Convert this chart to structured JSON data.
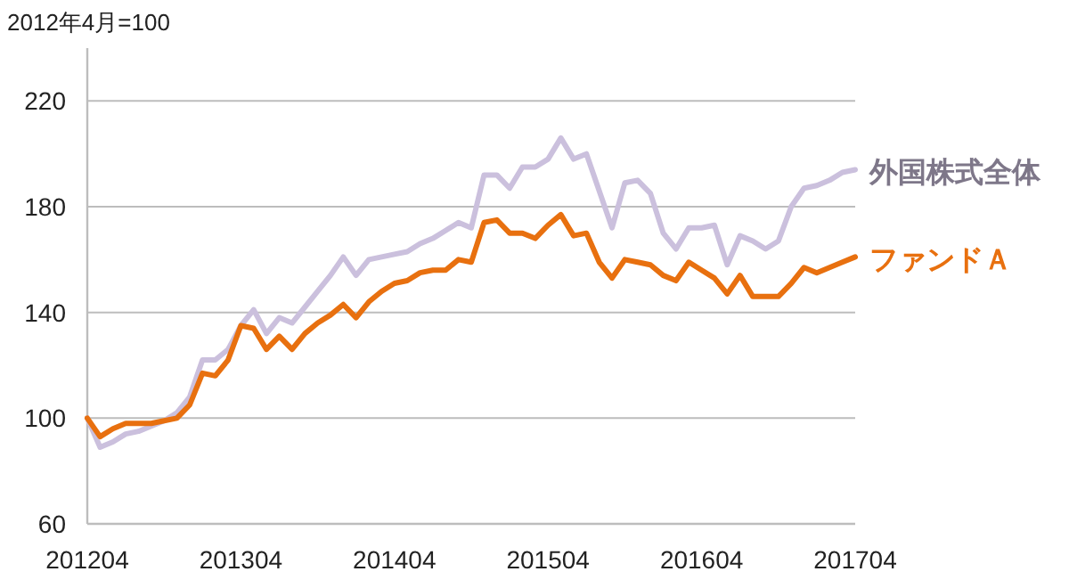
{
  "chart_data": {
    "type": "line",
    "title": "2012年4月=100",
    "x": [
      "2012-04",
      "2012-05",
      "2012-06",
      "2012-07",
      "2012-08",
      "2012-09",
      "2012-10",
      "2012-11",
      "2012-12",
      "2013-01",
      "2013-02",
      "2013-03",
      "2013-04",
      "2013-05",
      "2013-06",
      "2013-07",
      "2013-08",
      "2013-09",
      "2013-10",
      "2013-11",
      "2013-12",
      "2014-01",
      "2014-02",
      "2014-03",
      "2014-04",
      "2014-05",
      "2014-06",
      "2014-07",
      "2014-08",
      "2014-09",
      "2014-10",
      "2014-11",
      "2014-12",
      "2015-01",
      "2015-02",
      "2015-03",
      "2015-04",
      "2015-05",
      "2015-06",
      "2015-07",
      "2015-08",
      "2015-09",
      "2015-10",
      "2015-11",
      "2015-12",
      "2016-01",
      "2016-02",
      "2016-03",
      "2016-04",
      "2016-05",
      "2016-06",
      "2016-07",
      "2016-08",
      "2016-09",
      "2016-10",
      "2016-11",
      "2016-12",
      "2017-01",
      "2017-02",
      "2017-03",
      "2017-04"
    ],
    "series": [
      {
        "name": "外国株式全体",
        "color": "#cbc0dd",
        "values": [
          100,
          89,
          91,
          94,
          95,
          97,
          99,
          102,
          108,
          122,
          122,
          126,
          135,
          141,
          132,
          138,
          136,
          142,
          148,
          154,
          161,
          154,
          160,
          161,
          162,
          163,
          166,
          168,
          171,
          174,
          172,
          192,
          192,
          187,
          195,
          195,
          198,
          206,
          198,
          200,
          186,
          172,
          189,
          190,
          185,
          170,
          164,
          172,
          172,
          173,
          158,
          169,
          167,
          164,
          167,
          180,
          187,
          188,
          190,
          193,
          194
        ]
      },
      {
        "name": "ファンドＡ",
        "color": "#e8700f",
        "values": [
          100,
          93,
          96,
          98,
          98,
          98,
          99,
          100,
          105,
          117,
          116,
          122,
          135,
          134,
          126,
          131,
          126,
          132,
          136,
          139,
          143,
          138,
          144,
          148,
          151,
          152,
          155,
          156,
          156,
          160,
          159,
          174,
          175,
          170,
          170,
          168,
          173,
          177,
          169,
          170,
          159,
          153,
          160,
          159,
          158,
          154,
          152,
          159,
          156,
          153,
          147,
          154,
          146,
          146,
          146,
          151,
          157,
          155,
          157,
          159,
          161
        ]
      }
    ],
    "xlim": [
      "2012-04",
      "2017-04"
    ],
    "xticks": [
      {
        "value": "2012-04",
        "label": "201204"
      },
      {
        "value": "2013-04",
        "label": "201304"
      },
      {
        "value": "2014-04",
        "label": "201404"
      },
      {
        "value": "2015-04",
        "label": "201504"
      },
      {
        "value": "2016-04",
        "label": "201604"
      },
      {
        "value": "2017-04",
        "label": "201704"
      }
    ],
    "ylim": [
      60,
      240
    ],
    "yticks": [
      60,
      100,
      140,
      180,
      220
    ],
    "grid": "y",
    "line_style": "solid",
    "marker": "none"
  }
}
